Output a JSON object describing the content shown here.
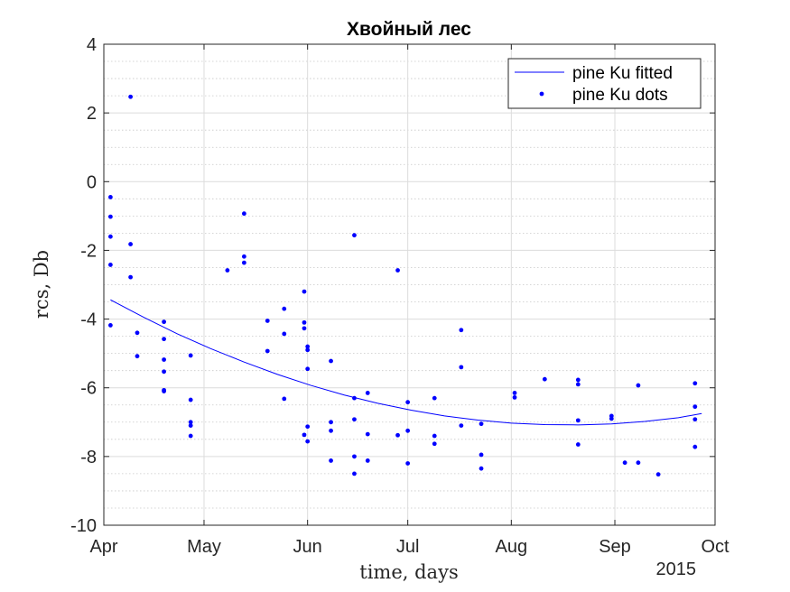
{
  "chart_data": {
    "type": "scatter",
    "title": "Хвойный лес",
    "xlabel": "time, days",
    "ylabel": "rcs, Db",
    "x_axis_year": "2015",
    "xlim": [
      "2015-04-01",
      "2015-10-01"
    ],
    "ylim": [
      -10,
      4
    ],
    "x_ticks": [
      {
        "date": "2015-04-01",
        "label": "Apr"
      },
      {
        "date": "2015-05-01",
        "label": "May"
      },
      {
        "date": "2015-06-01",
        "label": "Jun"
      },
      {
        "date": "2015-07-01",
        "label": "Jul"
      },
      {
        "date": "2015-08-01",
        "label": "Aug"
      },
      {
        "date": "2015-09-01",
        "label": "Sep"
      },
      {
        "date": "2015-10-01",
        "label": "Oct"
      }
    ],
    "y_ticks": [
      4,
      2,
      0,
      -2,
      -4,
      -6,
      -8,
      -10
    ],
    "y_minor_step": 0.5,
    "grid": true,
    "minor_grid": true,
    "legend": {
      "position": "top-right"
    },
    "series": [
      {
        "name": "pine Ku fitted",
        "kind": "line",
        "color": "#0000ff",
        "points": [
          [
            "2015-04-03",
            -3.44
          ],
          [
            "2015-04-13",
            -3.95
          ],
          [
            "2015-04-23",
            -4.43
          ],
          [
            "2015-05-03",
            -4.86
          ],
          [
            "2015-05-13",
            -5.25
          ],
          [
            "2015-05-23",
            -5.61
          ],
          [
            "2015-06-02",
            -5.93
          ],
          [
            "2015-06-12",
            -6.21
          ],
          [
            "2015-06-22",
            -6.45
          ],
          [
            "2015-07-02",
            -6.65
          ],
          [
            "2015-07-12",
            -6.82
          ],
          [
            "2015-07-22",
            -6.94
          ],
          [
            "2015-08-01",
            -7.03
          ],
          [
            "2015-08-11",
            -7.07
          ],
          [
            "2015-08-21",
            -7.08
          ],
          [
            "2015-08-31",
            -7.05
          ],
          [
            "2015-09-10",
            -6.98
          ],
          [
            "2015-09-20",
            -6.87
          ],
          [
            "2015-09-27",
            -6.75
          ]
        ]
      },
      {
        "name": "pine Ku dots",
        "kind": "scatter",
        "color": "#0000ff",
        "points": [
          [
            "2015-04-03",
            -0.45
          ],
          [
            "2015-04-03",
            -1.02
          ],
          [
            "2015-04-03",
            -1.6
          ],
          [
            "2015-04-03",
            -2.42
          ],
          [
            "2015-04-03",
            -4.18
          ],
          [
            "2015-04-09",
            2.47
          ],
          [
            "2015-04-09",
            -1.82
          ],
          [
            "2015-04-09",
            -2.78
          ],
          [
            "2015-04-11",
            -4.4
          ],
          [
            "2015-04-11",
            -5.08
          ],
          [
            "2015-04-19",
            -4.08
          ],
          [
            "2015-04-19",
            -4.58
          ],
          [
            "2015-04-19",
            -5.18
          ],
          [
            "2015-04-19",
            -5.53
          ],
          [
            "2015-04-19",
            -6.07
          ],
          [
            "2015-04-19",
            -6.1
          ],
          [
            "2015-04-27",
            -5.06
          ],
          [
            "2015-04-27",
            -6.35
          ],
          [
            "2015-04-27",
            -7.0
          ],
          [
            "2015-04-27",
            -7.1
          ],
          [
            "2015-04-27",
            -7.4
          ],
          [
            "2015-05-08",
            -2.58
          ],
          [
            "2015-05-13",
            -0.93
          ],
          [
            "2015-05-13",
            -2.18
          ],
          [
            "2015-05-13",
            -2.36
          ],
          [
            "2015-05-20",
            -4.05
          ],
          [
            "2015-05-20",
            -4.93
          ],
          [
            "2015-05-25",
            -3.7
          ],
          [
            "2015-05-25",
            -4.43
          ],
          [
            "2015-05-25",
            -6.32
          ],
          [
            "2015-05-31",
            -3.2
          ],
          [
            "2015-05-31",
            -4.1
          ],
          [
            "2015-05-31",
            -4.27
          ],
          [
            "2015-05-31",
            -7.37
          ],
          [
            "2015-06-01",
            -4.8
          ],
          [
            "2015-06-01",
            -4.9
          ],
          [
            "2015-06-01",
            -5.45
          ],
          [
            "2015-06-01",
            -7.13
          ],
          [
            "2015-06-01",
            -7.56
          ],
          [
            "2015-06-08",
            -5.22
          ],
          [
            "2015-06-08",
            -7.0
          ],
          [
            "2015-06-08",
            -7.25
          ],
          [
            "2015-06-08",
            -8.12
          ],
          [
            "2015-06-15",
            -1.56
          ],
          [
            "2015-06-15",
            -6.3
          ],
          [
            "2015-06-15",
            -6.92
          ],
          [
            "2015-06-15",
            -8.0
          ],
          [
            "2015-06-15",
            -8.5
          ],
          [
            "2015-06-19",
            -6.15
          ],
          [
            "2015-06-19",
            -7.35
          ],
          [
            "2015-06-19",
            -8.12
          ],
          [
            "2015-06-28",
            -2.58
          ],
          [
            "2015-06-28",
            -7.38
          ],
          [
            "2015-07-01",
            -6.42
          ],
          [
            "2015-07-01",
            -7.25
          ],
          [
            "2015-07-01",
            -8.2
          ],
          [
            "2015-07-09",
            -6.3
          ],
          [
            "2015-07-09",
            -7.4
          ],
          [
            "2015-07-09",
            -7.63
          ],
          [
            "2015-07-17",
            -4.32
          ],
          [
            "2015-07-17",
            -5.4
          ],
          [
            "2015-07-17",
            -7.1
          ],
          [
            "2015-07-23",
            -7.05
          ],
          [
            "2015-07-23",
            -7.95
          ],
          [
            "2015-07-23",
            -8.35
          ],
          [
            "2015-08-02",
            -6.15
          ],
          [
            "2015-08-02",
            -6.28
          ],
          [
            "2015-08-11",
            -5.75
          ],
          [
            "2015-08-21",
            -5.77
          ],
          [
            "2015-08-21",
            -5.9
          ],
          [
            "2015-08-21",
            -6.95
          ],
          [
            "2015-08-21",
            -7.65
          ],
          [
            "2015-08-31",
            -6.82
          ],
          [
            "2015-08-31",
            -6.9
          ],
          [
            "2015-09-04",
            -8.18
          ],
          [
            "2015-09-08",
            -5.93
          ],
          [
            "2015-09-08",
            -8.18
          ],
          [
            "2015-09-14",
            -8.52
          ],
          [
            "2015-09-25",
            -5.87
          ],
          [
            "2015-09-25",
            -6.55
          ],
          [
            "2015-09-25",
            -6.92
          ],
          [
            "2015-09-25",
            -7.72
          ]
        ]
      }
    ]
  }
}
